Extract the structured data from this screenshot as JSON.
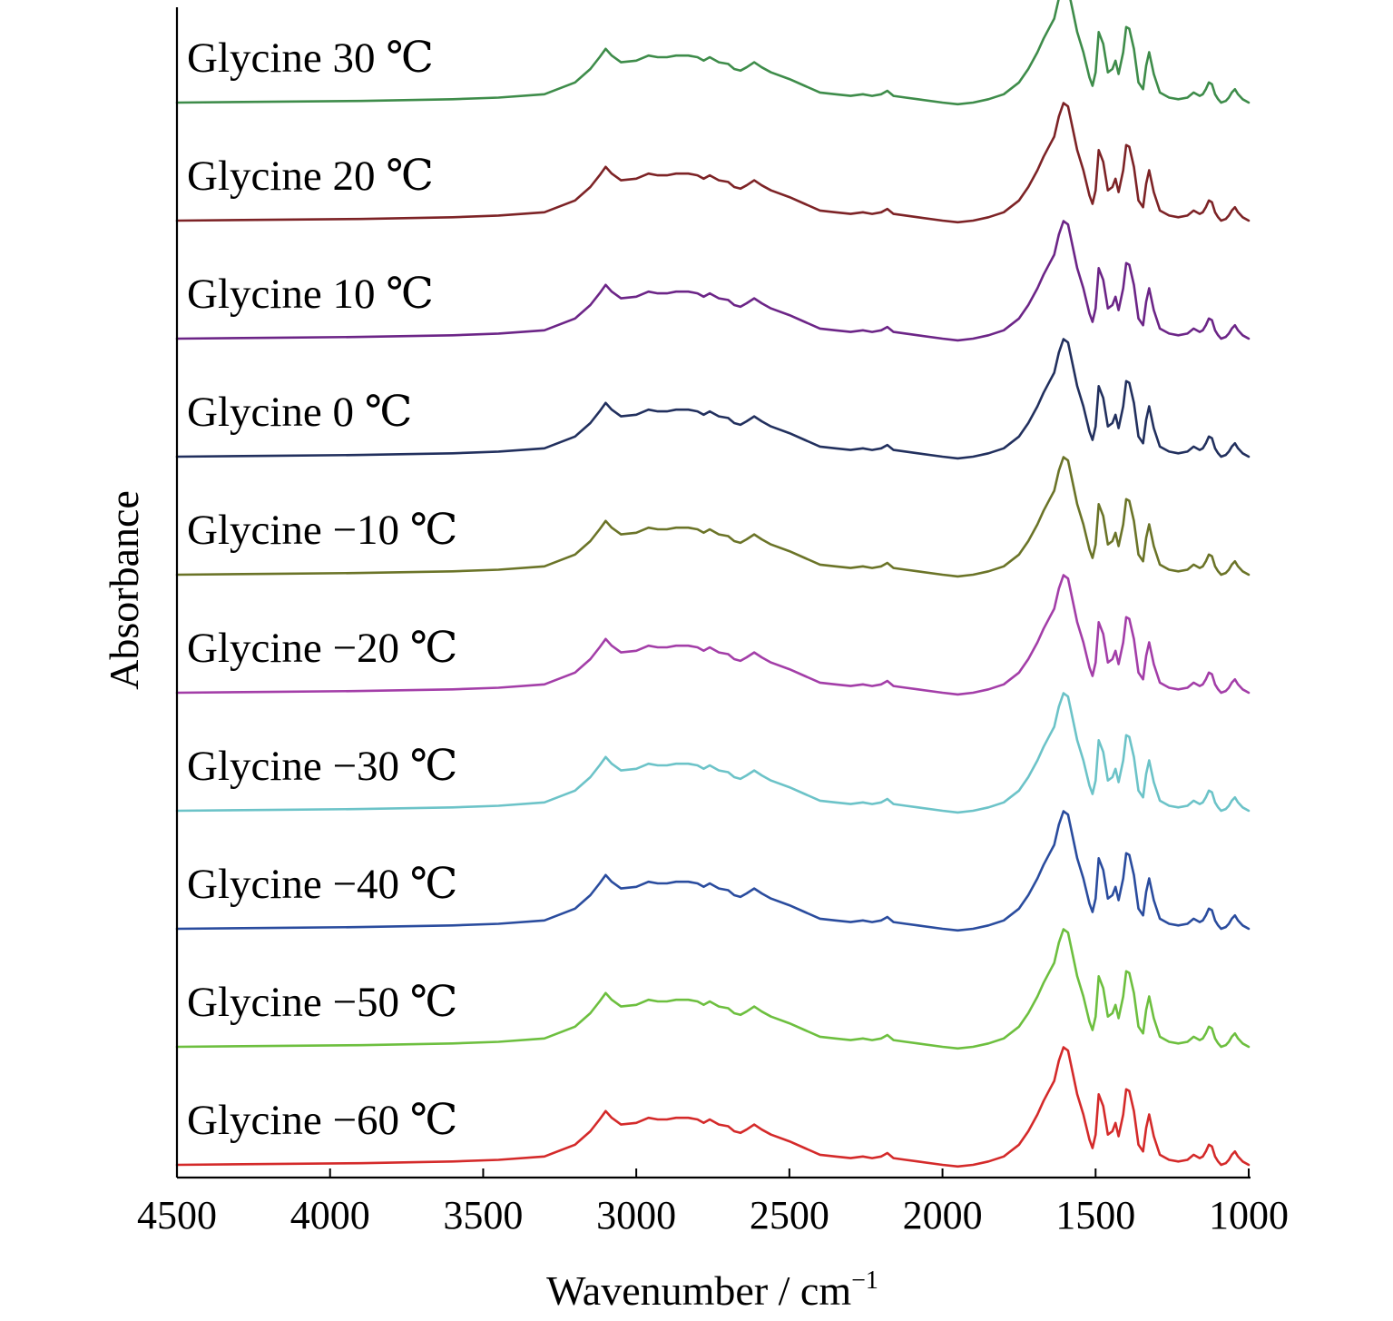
{
  "chart_data": {
    "type": "line",
    "xlabel": "Wavenumber / cm",
    "xlabel_superscript": "−1",
    "ylabel": "Absorbance",
    "xlim": [
      4500,
      1000
    ],
    "x_reversed": true,
    "y_ticks_shown": false,
    "x_ticks": [
      "4500",
      "4000",
      "3500",
      "3000",
      "2500",
      "2000",
      "1500",
      "1000"
    ],
    "x_tick_values": [
      4500,
      4000,
      3500,
      3000,
      2500,
      2000,
      1500,
      1000
    ],
    "stacked_offset": true,
    "profile_x": [
      4500,
      4200,
      3900,
      3600,
      3450,
      3300,
      3200,
      3150,
      3120,
      3100,
      3080,
      3050,
      3000,
      2960,
      2930,
      2900,
      2870,
      2830,
      2800,
      2780,
      2760,
      2730,
      2700,
      2680,
      2660,
      2640,
      2615,
      2590,
      2560,
      2500,
      2450,
      2400,
      2350,
      2300,
      2260,
      2230,
      2200,
      2180,
      2160,
      2120,
      2080,
      2000,
      1950,
      1900,
      1850,
      1800,
      1750,
      1720,
      1690,
      1670,
      1650,
      1635,
      1620,
      1605,
      1590,
      1575,
      1560,
      1540,
      1520,
      1510,
      1500,
      1490,
      1475,
      1460,
      1445,
      1435,
      1425,
      1410,
      1400,
      1390,
      1375,
      1360,
      1345,
      1335,
      1325,
      1310,
      1290,
      1260,
      1230,
      1200,
      1180,
      1160,
      1150,
      1140,
      1130,
      1120,
      1110,
      1100,
      1090,
      1075,
      1065,
      1055,
      1045,
      1035,
      1020,
      1000
    ],
    "series": [
      {
        "name": "Glycine 30 ℃",
        "color": "#3e8c4a",
        "offset": 9,
        "profile": [
          0.0,
          0.005,
          0.01,
          0.02,
          0.03,
          0.05,
          0.12,
          0.2,
          0.27,
          0.32,
          0.28,
          0.24,
          0.25,
          0.28,
          0.27,
          0.27,
          0.28,
          0.28,
          0.27,
          0.25,
          0.27,
          0.24,
          0.23,
          0.2,
          0.19,
          0.21,
          0.24,
          0.21,
          0.18,
          0.14,
          0.1,
          0.06,
          0.05,
          0.04,
          0.05,
          0.04,
          0.05,
          0.07,
          0.04,
          0.03,
          0.02,
          0.0,
          -0.01,
          0.0,
          0.02,
          0.05,
          0.12,
          0.2,
          0.3,
          0.38,
          0.45,
          0.5,
          0.62,
          0.7,
          0.68,
          0.55,
          0.42,
          0.3,
          0.15,
          0.1,
          0.18,
          0.42,
          0.35,
          0.18,
          0.2,
          0.25,
          0.17,
          0.3,
          0.45,
          0.44,
          0.32,
          0.12,
          0.08,
          0.22,
          0.3,
          0.17,
          0.06,
          0.03,
          0.02,
          0.03,
          0.06,
          0.04,
          0.05,
          0.08,
          0.12,
          0.11,
          0.05,
          0.02,
          0.0,
          0.01,
          0.03,
          0.06,
          0.08,
          0.05,
          0.02,
          0.0
        ]
      },
      {
        "name": "Glycine 20 ℃",
        "color": "#7d2326",
        "offset": 8,
        "profile": [
          0.0,
          0.005,
          0.01,
          0.02,
          0.03,
          0.05,
          0.12,
          0.2,
          0.27,
          0.32,
          0.28,
          0.24,
          0.25,
          0.28,
          0.27,
          0.27,
          0.28,
          0.28,
          0.27,
          0.25,
          0.27,
          0.24,
          0.23,
          0.2,
          0.19,
          0.21,
          0.24,
          0.21,
          0.18,
          0.14,
          0.1,
          0.06,
          0.05,
          0.04,
          0.05,
          0.04,
          0.05,
          0.07,
          0.04,
          0.03,
          0.02,
          0.0,
          -0.01,
          0.0,
          0.02,
          0.05,
          0.12,
          0.2,
          0.3,
          0.38,
          0.45,
          0.5,
          0.62,
          0.7,
          0.68,
          0.55,
          0.42,
          0.3,
          0.15,
          0.1,
          0.18,
          0.42,
          0.35,
          0.18,
          0.2,
          0.25,
          0.17,
          0.3,
          0.45,
          0.44,
          0.32,
          0.12,
          0.08,
          0.22,
          0.3,
          0.17,
          0.06,
          0.03,
          0.02,
          0.03,
          0.06,
          0.04,
          0.05,
          0.08,
          0.12,
          0.11,
          0.05,
          0.02,
          0.0,
          0.01,
          0.03,
          0.06,
          0.08,
          0.05,
          0.02,
          0.0
        ]
      },
      {
        "name": "Glycine 10 ℃",
        "color": "#6c2587",
        "offset": 7,
        "profile": [
          0.0,
          0.005,
          0.01,
          0.02,
          0.03,
          0.05,
          0.12,
          0.2,
          0.27,
          0.32,
          0.28,
          0.24,
          0.25,
          0.28,
          0.27,
          0.27,
          0.28,
          0.28,
          0.27,
          0.25,
          0.27,
          0.24,
          0.23,
          0.2,
          0.19,
          0.21,
          0.24,
          0.21,
          0.18,
          0.14,
          0.1,
          0.06,
          0.05,
          0.04,
          0.05,
          0.04,
          0.05,
          0.07,
          0.04,
          0.03,
          0.02,
          0.0,
          -0.01,
          0.0,
          0.02,
          0.05,
          0.12,
          0.2,
          0.3,
          0.38,
          0.45,
          0.5,
          0.62,
          0.7,
          0.68,
          0.55,
          0.42,
          0.3,
          0.15,
          0.1,
          0.18,
          0.42,
          0.35,
          0.18,
          0.2,
          0.25,
          0.17,
          0.3,
          0.45,
          0.44,
          0.32,
          0.12,
          0.08,
          0.22,
          0.3,
          0.17,
          0.06,
          0.03,
          0.02,
          0.03,
          0.06,
          0.04,
          0.05,
          0.08,
          0.12,
          0.11,
          0.05,
          0.02,
          0.0,
          0.01,
          0.03,
          0.06,
          0.08,
          0.05,
          0.02,
          0.0
        ]
      },
      {
        "name": "Glycine 0 ℃",
        "color": "#22305e",
        "offset": 6,
        "profile": [
          0.0,
          0.005,
          0.01,
          0.02,
          0.03,
          0.05,
          0.12,
          0.2,
          0.27,
          0.32,
          0.28,
          0.24,
          0.25,
          0.28,
          0.27,
          0.27,
          0.28,
          0.28,
          0.27,
          0.25,
          0.27,
          0.24,
          0.23,
          0.2,
          0.19,
          0.21,
          0.24,
          0.21,
          0.18,
          0.14,
          0.1,
          0.06,
          0.05,
          0.04,
          0.05,
          0.04,
          0.05,
          0.07,
          0.04,
          0.03,
          0.02,
          0.0,
          -0.01,
          0.0,
          0.02,
          0.05,
          0.12,
          0.2,
          0.3,
          0.38,
          0.45,
          0.5,
          0.62,
          0.7,
          0.68,
          0.55,
          0.42,
          0.3,
          0.15,
          0.1,
          0.18,
          0.42,
          0.35,
          0.18,
          0.2,
          0.25,
          0.17,
          0.3,
          0.45,
          0.44,
          0.32,
          0.12,
          0.08,
          0.22,
          0.3,
          0.17,
          0.06,
          0.03,
          0.02,
          0.03,
          0.06,
          0.04,
          0.05,
          0.08,
          0.12,
          0.11,
          0.05,
          0.02,
          0.0,
          0.01,
          0.03,
          0.06,
          0.08,
          0.05,
          0.02,
          0.0
        ]
      },
      {
        "name": "Glycine −10 ℃",
        "color": "#6b7428",
        "offset": 5,
        "profile": [
          0.0,
          0.005,
          0.01,
          0.02,
          0.03,
          0.05,
          0.12,
          0.2,
          0.27,
          0.32,
          0.28,
          0.24,
          0.25,
          0.28,
          0.27,
          0.27,
          0.28,
          0.28,
          0.27,
          0.25,
          0.27,
          0.24,
          0.23,
          0.2,
          0.19,
          0.21,
          0.24,
          0.21,
          0.18,
          0.14,
          0.1,
          0.06,
          0.05,
          0.04,
          0.05,
          0.04,
          0.05,
          0.07,
          0.04,
          0.03,
          0.02,
          0.0,
          -0.01,
          0.0,
          0.02,
          0.05,
          0.12,
          0.2,
          0.3,
          0.38,
          0.45,
          0.5,
          0.62,
          0.7,
          0.68,
          0.55,
          0.42,
          0.3,
          0.15,
          0.1,
          0.18,
          0.42,
          0.35,
          0.18,
          0.2,
          0.25,
          0.17,
          0.3,
          0.45,
          0.44,
          0.32,
          0.12,
          0.08,
          0.22,
          0.3,
          0.17,
          0.06,
          0.03,
          0.02,
          0.03,
          0.06,
          0.04,
          0.05,
          0.08,
          0.12,
          0.11,
          0.05,
          0.02,
          0.0,
          0.01,
          0.03,
          0.06,
          0.08,
          0.05,
          0.02,
          0.0
        ]
      },
      {
        "name": "Glycine −20 ℃",
        "color": "#a33ea8",
        "offset": 4,
        "profile": [
          0.0,
          0.005,
          0.01,
          0.02,
          0.03,
          0.05,
          0.12,
          0.2,
          0.27,
          0.32,
          0.28,
          0.24,
          0.25,
          0.28,
          0.27,
          0.27,
          0.28,
          0.28,
          0.27,
          0.25,
          0.27,
          0.24,
          0.23,
          0.2,
          0.19,
          0.21,
          0.24,
          0.21,
          0.18,
          0.14,
          0.1,
          0.06,
          0.05,
          0.04,
          0.05,
          0.04,
          0.05,
          0.07,
          0.04,
          0.03,
          0.02,
          0.0,
          -0.01,
          0.0,
          0.02,
          0.05,
          0.12,
          0.2,
          0.3,
          0.38,
          0.45,
          0.5,
          0.62,
          0.7,
          0.68,
          0.55,
          0.42,
          0.3,
          0.15,
          0.1,
          0.18,
          0.42,
          0.35,
          0.18,
          0.2,
          0.25,
          0.17,
          0.3,
          0.45,
          0.44,
          0.32,
          0.12,
          0.08,
          0.22,
          0.3,
          0.17,
          0.06,
          0.03,
          0.02,
          0.03,
          0.06,
          0.04,
          0.05,
          0.08,
          0.12,
          0.11,
          0.05,
          0.02,
          0.0,
          0.01,
          0.03,
          0.06,
          0.08,
          0.05,
          0.02,
          0.0
        ]
      },
      {
        "name": "Glycine −30 ℃",
        "color": "#6cc3c8",
        "offset": 3,
        "profile": [
          0.0,
          0.005,
          0.01,
          0.02,
          0.03,
          0.05,
          0.12,
          0.2,
          0.27,
          0.32,
          0.28,
          0.24,
          0.25,
          0.28,
          0.27,
          0.27,
          0.28,
          0.28,
          0.27,
          0.25,
          0.27,
          0.24,
          0.23,
          0.2,
          0.19,
          0.21,
          0.24,
          0.21,
          0.18,
          0.14,
          0.1,
          0.06,
          0.05,
          0.04,
          0.05,
          0.04,
          0.05,
          0.07,
          0.04,
          0.03,
          0.02,
          0.0,
          -0.01,
          0.0,
          0.02,
          0.05,
          0.12,
          0.2,
          0.3,
          0.38,
          0.45,
          0.5,
          0.62,
          0.7,
          0.68,
          0.55,
          0.42,
          0.3,
          0.15,
          0.1,
          0.18,
          0.42,
          0.35,
          0.18,
          0.2,
          0.25,
          0.17,
          0.3,
          0.45,
          0.44,
          0.32,
          0.12,
          0.08,
          0.22,
          0.3,
          0.17,
          0.06,
          0.03,
          0.02,
          0.03,
          0.06,
          0.04,
          0.05,
          0.08,
          0.12,
          0.11,
          0.05,
          0.02,
          0.0,
          0.01,
          0.03,
          0.06,
          0.08,
          0.05,
          0.02,
          0.0
        ]
      },
      {
        "name": "Glycine −40 ℃",
        "color": "#2a4c9e",
        "offset": 2,
        "profile": [
          0.0,
          0.005,
          0.01,
          0.02,
          0.03,
          0.05,
          0.12,
          0.2,
          0.27,
          0.32,
          0.28,
          0.24,
          0.25,
          0.28,
          0.27,
          0.27,
          0.28,
          0.28,
          0.27,
          0.25,
          0.27,
          0.24,
          0.23,
          0.2,
          0.19,
          0.21,
          0.24,
          0.21,
          0.18,
          0.14,
          0.1,
          0.06,
          0.05,
          0.04,
          0.05,
          0.04,
          0.05,
          0.07,
          0.04,
          0.03,
          0.02,
          0.0,
          -0.01,
          0.0,
          0.02,
          0.05,
          0.12,
          0.2,
          0.3,
          0.38,
          0.45,
          0.5,
          0.62,
          0.7,
          0.68,
          0.55,
          0.42,
          0.3,
          0.15,
          0.1,
          0.18,
          0.42,
          0.35,
          0.18,
          0.2,
          0.25,
          0.17,
          0.3,
          0.45,
          0.44,
          0.32,
          0.12,
          0.08,
          0.22,
          0.3,
          0.17,
          0.06,
          0.03,
          0.02,
          0.03,
          0.06,
          0.04,
          0.05,
          0.08,
          0.12,
          0.11,
          0.05,
          0.02,
          0.0,
          0.01,
          0.03,
          0.06,
          0.08,
          0.05,
          0.02,
          0.0
        ]
      },
      {
        "name": "Glycine −50 ℃",
        "color": "#6dbf3f",
        "offset": 1,
        "profile": [
          0.0,
          0.005,
          0.01,
          0.02,
          0.03,
          0.05,
          0.12,
          0.2,
          0.27,
          0.32,
          0.28,
          0.24,
          0.25,
          0.28,
          0.27,
          0.27,
          0.28,
          0.28,
          0.27,
          0.25,
          0.27,
          0.24,
          0.23,
          0.2,
          0.19,
          0.21,
          0.24,
          0.21,
          0.18,
          0.14,
          0.1,
          0.06,
          0.05,
          0.04,
          0.05,
          0.04,
          0.05,
          0.07,
          0.04,
          0.03,
          0.02,
          0.0,
          -0.01,
          0.0,
          0.02,
          0.05,
          0.12,
          0.2,
          0.3,
          0.38,
          0.45,
          0.5,
          0.62,
          0.7,
          0.68,
          0.55,
          0.42,
          0.3,
          0.15,
          0.1,
          0.18,
          0.42,
          0.35,
          0.18,
          0.2,
          0.25,
          0.17,
          0.3,
          0.45,
          0.44,
          0.32,
          0.12,
          0.08,
          0.22,
          0.3,
          0.17,
          0.06,
          0.03,
          0.02,
          0.03,
          0.06,
          0.04,
          0.05,
          0.08,
          0.12,
          0.11,
          0.05,
          0.02,
          0.0,
          0.01,
          0.03,
          0.06,
          0.08,
          0.05,
          0.02,
          0.0
        ]
      },
      {
        "name": "Glycine −60 ℃",
        "color": "#d42a2a",
        "offset": 0,
        "profile": [
          0.0,
          0.005,
          0.01,
          0.02,
          0.03,
          0.05,
          0.12,
          0.2,
          0.27,
          0.32,
          0.28,
          0.24,
          0.25,
          0.28,
          0.27,
          0.27,
          0.28,
          0.28,
          0.27,
          0.25,
          0.27,
          0.24,
          0.23,
          0.2,
          0.19,
          0.21,
          0.24,
          0.21,
          0.18,
          0.14,
          0.1,
          0.06,
          0.05,
          0.04,
          0.05,
          0.04,
          0.05,
          0.07,
          0.04,
          0.03,
          0.02,
          0.0,
          -0.01,
          0.0,
          0.02,
          0.05,
          0.12,
          0.2,
          0.3,
          0.38,
          0.45,
          0.5,
          0.62,
          0.7,
          0.68,
          0.55,
          0.42,
          0.3,
          0.15,
          0.1,
          0.18,
          0.42,
          0.35,
          0.18,
          0.2,
          0.25,
          0.17,
          0.3,
          0.45,
          0.44,
          0.32,
          0.12,
          0.08,
          0.22,
          0.3,
          0.17,
          0.06,
          0.03,
          0.02,
          0.03,
          0.06,
          0.04,
          0.05,
          0.08,
          0.12,
          0.11,
          0.05,
          0.02,
          0.0,
          0.01,
          0.03,
          0.06,
          0.08,
          0.05,
          0.02,
          0.0
        ]
      }
    ]
  }
}
